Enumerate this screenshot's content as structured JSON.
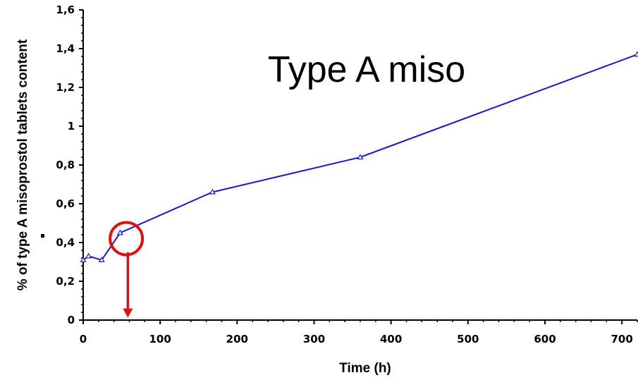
{
  "chart_data": {
    "type": "line",
    "title": "Type A miso",
    "xlabel": "Time (h)",
    "ylabel": "% of type A misoprostol tablets content",
    "xlim": [
      0,
      720
    ],
    "ylim": [
      0,
      1.6
    ],
    "x_ticks": [
      0,
      100,
      200,
      300,
      400,
      500,
      600,
      700
    ],
    "x_tick_labels": [
      "0",
      "100",
      "200",
      "300",
      "400",
      "500",
      "600",
      "700"
    ],
    "y_ticks": [
      0,
      0.2,
      0.4,
      0.6,
      0.8,
      1,
      1.2,
      1.4,
      1.6
    ],
    "y_tick_labels": [
      "0",
      "0,2",
      "0,4",
      "0,6",
      "0,8",
      "1",
      "1,2",
      "1,4",
      "1,6"
    ],
    "grid": false,
    "series": [
      {
        "color": "#1a1acc",
        "marker": "triangle",
        "x": [
          0,
          7,
          24,
          48,
          168,
          360,
          720
        ],
        "y": [
          0.31,
          0.33,
          0.31,
          0.45,
          0.66,
          0.84,
          1.37
        ]
      }
    ],
    "annotations": [
      {
        "type": "circle",
        "x": 56,
        "y": 0.42,
        "color": "#e01010"
      },
      {
        "type": "arrow",
        "x": 58,
        "y_from": 0.35,
        "y_to": 0.02,
        "color": "#e01010"
      }
    ]
  }
}
